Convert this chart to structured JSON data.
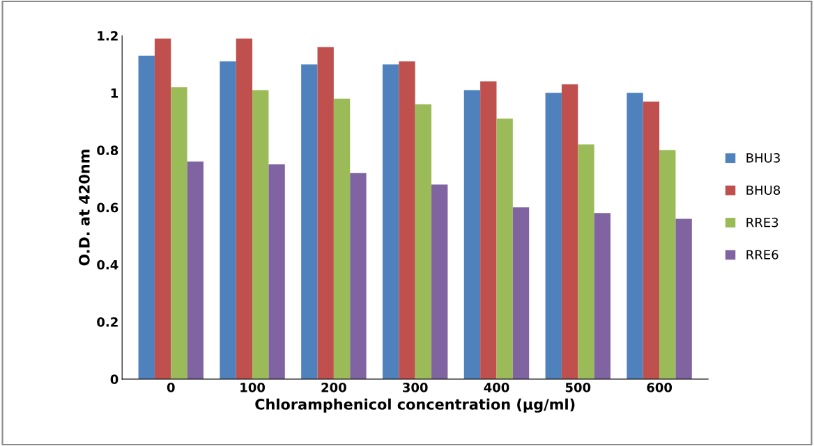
{
  "chart_data": {
    "type": "bar",
    "xlabel": "Chloramphenicol concentration (µg/ml)",
    "ylabel": "O.D. at 420nm",
    "categories": [
      "0",
      "100",
      "200",
      "300",
      "400",
      "500",
      "600"
    ],
    "series": [
      {
        "name": "BHU3",
        "color": "#4f81bd",
        "values": [
          1.13,
          1.11,
          1.1,
          1.1,
          1.01,
          1.0,
          1.0
        ]
      },
      {
        "name": "BHU8",
        "color": "#c0504d",
        "values": [
          1.19,
          1.19,
          1.16,
          1.11,
          1.04,
          1.03,
          0.97
        ]
      },
      {
        "name": "RRE3",
        "color": "#9bbb59",
        "values": [
          1.02,
          1.01,
          0.98,
          0.96,
          0.91,
          0.82,
          0.8
        ]
      },
      {
        "name": "RRE6",
        "color": "#8064a2",
        "values": [
          0.76,
          0.75,
          0.72,
          0.68,
          0.6,
          0.58,
          0.56
        ]
      }
    ],
    "ylim": [
      0,
      1.2
    ],
    "yticks": [
      0,
      0.2,
      0.4,
      0.6,
      0.8,
      1,
      1.2
    ],
    "grid": false,
    "legend": "right"
  }
}
